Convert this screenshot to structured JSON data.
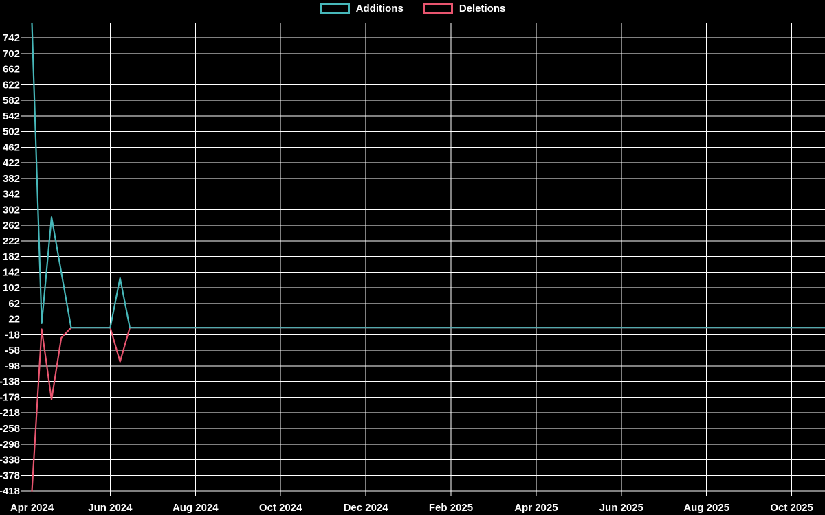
{
  "colors": {
    "background": "#000000",
    "grid": "#ffffff",
    "text": "#ffffff",
    "additions": "#47b8ba",
    "deletions": "#e8556f"
  },
  "legend": {
    "items": [
      {
        "label": "Additions",
        "color": "#47b8ba"
      },
      {
        "label": "Deletions",
        "color": "#e8556f"
      }
    ]
  },
  "chart_data": {
    "type": "line",
    "title": "",
    "legend_position": "top-center",
    "grid": true,
    "x_axis": {
      "unit": "week",
      "start": "Apr 2024",
      "end": "Nov 2025",
      "tick_labels": [
        "Apr 2024",
        "Jun 2024",
        "Aug 2024",
        "Oct 2024",
        "Dec 2024",
        "Feb 2025",
        "Apr 2025",
        "Jun 2025",
        "Aug 2025",
        "Oct 2025"
      ]
    },
    "y_axis": {
      "min": -418,
      "max": 742,
      "tick_step": 40,
      "ticks": [
        742,
        702,
        662,
        622,
        582,
        542,
        502,
        462,
        422,
        382,
        342,
        302,
        262,
        222,
        182,
        142,
        102,
        62,
        22,
        -18,
        -58,
        -98,
        -138,
        -178,
        -218,
        -258,
        -298,
        -338,
        -378,
        -418
      ]
    },
    "series": [
      {
        "name": "Additions",
        "color": "#47b8ba",
        "values": [
          779,
          11,
          283,
          142,
          0,
          0,
          0,
          0,
          0,
          127,
          0,
          0,
          0,
          0,
          0,
          0,
          0,
          0,
          0,
          0,
          0,
          0,
          0,
          0,
          0,
          0,
          0,
          0,
          0,
          0,
          0,
          0,
          0,
          0,
          0,
          0,
          0,
          0,
          0,
          0,
          0,
          0,
          0,
          0,
          0,
          0,
          0,
          0,
          0,
          0,
          0,
          0,
          0,
          0,
          0,
          0,
          0,
          0,
          0,
          0,
          0,
          0,
          0,
          0,
          0,
          0,
          0,
          0,
          0,
          0,
          0,
          0,
          0,
          0,
          0,
          0,
          0,
          0,
          0,
          0,
          0,
          0
        ]
      },
      {
        "name": "Deletions",
        "color": "#e8556f",
        "values": [
          -418,
          -4,
          -184,
          -26,
          0,
          0,
          0,
          0,
          0,
          -87,
          0,
          0,
          0,
          0,
          0,
          0,
          0,
          0,
          0,
          0,
          0,
          0,
          0,
          0,
          0,
          0,
          0,
          0,
          0,
          0,
          0,
          0,
          0,
          0,
          0,
          0,
          0,
          0,
          0,
          0,
          0,
          0,
          0,
          0,
          0,
          0,
          0,
          0,
          0,
          0,
          0,
          0,
          0,
          0,
          0,
          0,
          0,
          0,
          0,
          0,
          0,
          0,
          0,
          0,
          0,
          0,
          0,
          0,
          0,
          0,
          0,
          0,
          0,
          0,
          0,
          0,
          0,
          0,
          0,
          0,
          0,
          0
        ]
      }
    ]
  }
}
